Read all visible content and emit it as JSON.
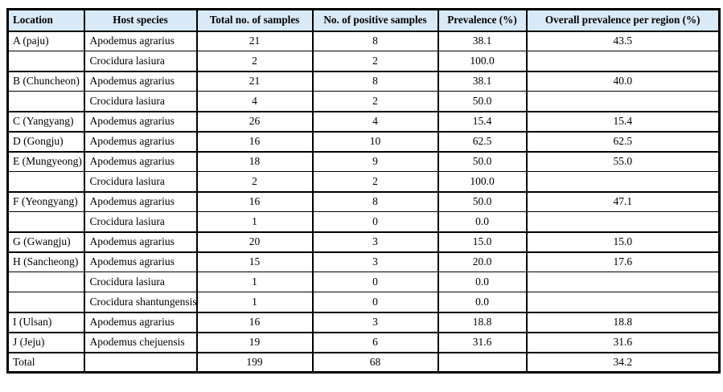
{
  "colors": {
    "header_background": "#d8eaf8",
    "border": "#000000",
    "text": "#000000"
  },
  "table": {
    "columns": [
      {
        "key": "location",
        "label": "Location"
      },
      {
        "key": "species",
        "label": "Host species"
      },
      {
        "key": "total",
        "label": "Total no. of samples"
      },
      {
        "key": "positive",
        "label": "No. of positive samples"
      },
      {
        "key": "prevalence",
        "label": "Prevalence (%)"
      },
      {
        "key": "overall",
        "label": "Overall prevalence per region (%)"
      }
    ],
    "rows": [
      {
        "location": "A (paju)",
        "species": "Apodemus agrarius",
        "total": "21",
        "positive": "8",
        "prevalence": "38.1",
        "overall": "43.5",
        "group_start": true
      },
      {
        "location": "",
        "species": "Crocidura lasiura",
        "total": "2",
        "positive": "2",
        "prevalence": "100.0",
        "overall": "",
        "group_start": false
      },
      {
        "location": "B (Chuncheon)",
        "species": "Apodemus agrarius",
        "total": "21",
        "positive": "8",
        "prevalence": "38.1",
        "overall": "40.0",
        "group_start": true
      },
      {
        "location": "",
        "species": "Crocidura lasiura",
        "total": "4",
        "positive": "2",
        "prevalence": "50.0",
        "overall": "",
        "group_start": false
      },
      {
        "location": "C (Yangyang)",
        "species": "Apodemus agrarius",
        "total": "26",
        "positive": "4",
        "prevalence": "15.4",
        "overall": "15.4",
        "group_start": true
      },
      {
        "location": "D (Gongju)",
        "species": "Apodemus agrarius",
        "total": "16",
        "positive": "10",
        "prevalence": "62.5",
        "overall": "62.5",
        "group_start": true
      },
      {
        "location": "E (Mungyeong)",
        "species": "Apodemus agrarius",
        "total": "18",
        "positive": "9",
        "prevalence": "50.0",
        "overall": "55.0",
        "group_start": true
      },
      {
        "location": "",
        "species": "Crocidura lasiura",
        "total": "2",
        "positive": "2",
        "prevalence": "100.0",
        "overall": "",
        "group_start": false
      },
      {
        "location": "F (Yeongyang)",
        "species": "Apodemus agrarius",
        "total": "16",
        "positive": "8",
        "prevalence": "50.0",
        "overall": "47.1",
        "group_start": true
      },
      {
        "location": "",
        "species": "Crocidura lasiura",
        "total": "1",
        "positive": "0",
        "prevalence": "0.0",
        "overall": "",
        "group_start": false
      },
      {
        "location": "G (Gwangju)",
        "species": "Apodemus agrarius",
        "total": "20",
        "positive": "3",
        "prevalence": "15.0",
        "overall": "15.0",
        "group_start": true
      },
      {
        "location": "H (Sancheong)",
        "species": "Apodemus agrarius",
        "total": "15",
        "positive": "3",
        "prevalence": "20.0",
        "overall": "17.6",
        "group_start": true
      },
      {
        "location": "",
        "species": "Crocidura lasiura",
        "total": "1",
        "positive": "0",
        "prevalence": "0.0",
        "overall": "",
        "group_start": false
      },
      {
        "location": "",
        "species": "Crocidura shantungensis",
        "total": "1",
        "positive": "0",
        "prevalence": "0.0",
        "overall": "",
        "group_start": false
      },
      {
        "location": "I (Ulsan)",
        "species": "Apodemus agrarius",
        "total": "16",
        "positive": "3",
        "prevalence": "18.8",
        "overall": "18.8",
        "group_start": true
      },
      {
        "location": "J (Jeju)",
        "species": "Apodemus chejuensis",
        "total": "19",
        "positive": "6",
        "prevalence": "31.6",
        "overall": "31.6",
        "group_start": true
      },
      {
        "location": "Total",
        "species": "",
        "total": "199",
        "positive": "68",
        "prevalence": "",
        "overall": "34.2",
        "group_start": true
      }
    ]
  }
}
